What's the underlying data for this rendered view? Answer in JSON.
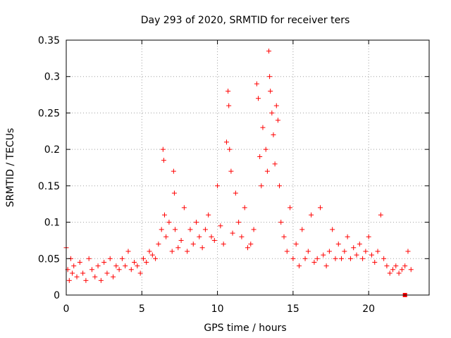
{
  "chart_data": {
    "type": "scatter",
    "title": "Day 293 of 2020, SRMTID for receiver ters",
    "xlabel": "GPS time / hours",
    "ylabel": "SRMTID / TECUs",
    "xlim": [
      0,
      24
    ],
    "ylim": [
      0,
      0.35
    ],
    "xticks": [
      0,
      5,
      10,
      15,
      20
    ],
    "xtick_labels": [
      "0",
      "5",
      "10",
      "15",
      "20"
    ],
    "yticks": [
      0,
      0.05,
      0.1,
      0.15,
      0.2,
      0.25,
      0.3,
      0.35
    ],
    "ytick_labels": [
      "0",
      "0.05",
      "0.1",
      "0.15",
      "0.2",
      "0.25",
      "0.3",
      "0.35"
    ],
    "grid": true,
    "marker": "+",
    "color": "#ff0000",
    "series": [
      {
        "name": "SRMTID",
        "x": [
          0.0,
          0.1,
          0.2,
          0.3,
          0.4,
          0.5,
          0.7,
          0.9,
          1.1,
          1.3,
          1.5,
          1.7,
          1.9,
          2.1,
          2.3,
          2.5,
          2.7,
          2.9,
          3.1,
          3.3,
          3.5,
          3.7,
          3.9,
          4.1,
          4.3,
          4.5,
          4.7,
          4.9,
          5.1,
          5.3,
          5.5,
          5.7,
          5.9,
          6.1,
          6.3,
          6.4,
          6.45,
          6.5,
          6.6,
          6.8,
          7.0,
          7.1,
          7.15,
          7.2,
          7.4,
          7.6,
          7.8,
          8.0,
          8.2,
          8.4,
          8.6,
          8.8,
          9.0,
          9.2,
          9.4,
          9.6,
          9.8,
          10.0,
          10.2,
          10.4,
          10.6,
          10.7,
          10.75,
          10.8,
          10.9,
          11.0,
          11.2,
          11.4,
          11.6,
          11.8,
          12.0,
          12.2,
          12.4,
          12.6,
          12.7,
          12.8,
          12.9,
          13.0,
          13.2,
          13.3,
          13.4,
          13.45,
          13.5,
          13.6,
          13.7,
          13.8,
          13.9,
          14.0,
          14.1,
          14.2,
          14.4,
          14.6,
          14.8,
          15.0,
          15.2,
          15.4,
          15.6,
          15.8,
          16.0,
          16.2,
          16.4,
          16.6,
          16.8,
          17.0,
          17.2,
          17.4,
          17.6,
          17.8,
          18.0,
          18.2,
          18.4,
          18.6,
          18.8,
          19.0,
          19.2,
          19.4,
          19.6,
          19.8,
          20.0,
          20.2,
          20.4,
          20.6,
          20.8,
          21.0,
          21.2,
          21.4,
          21.6,
          21.8,
          22.0,
          22.2,
          22.4,
          22.6,
          22.8
        ],
        "y": [
          0.065,
          0.035,
          0.02,
          0.05,
          0.03,
          0.04,
          0.025,
          0.045,
          0.03,
          0.02,
          0.05,
          0.035,
          0.025,
          0.04,
          0.02,
          0.045,
          0.03,
          0.05,
          0.025,
          0.04,
          0.035,
          0.05,
          0.04,
          0.06,
          0.035,
          0.045,
          0.04,
          0.03,
          0.05,
          0.045,
          0.06,
          0.055,
          0.05,
          0.07,
          0.09,
          0.2,
          0.185,
          0.11,
          0.08,
          0.1,
          0.06,
          0.17,
          0.14,
          0.09,
          0.065,
          0.075,
          0.12,
          0.06,
          0.09,
          0.07,
          0.1,
          0.08,
          0.065,
          0.09,
          0.11,
          0.08,
          0.075,
          0.15,
          0.095,
          0.07,
          0.21,
          0.28,
          0.26,
          0.2,
          0.17,
          0.085,
          0.14,
          0.1,
          0.08,
          0.12,
          0.065,
          0.07,
          0.09,
          0.29,
          0.27,
          0.19,
          0.15,
          0.23,
          0.2,
          0.17,
          0.335,
          0.3,
          0.28,
          0.25,
          0.22,
          0.18,
          0.26,
          0.24,
          0.15,
          0.1,
          0.08,
          0.06,
          0.12,
          0.05,
          0.07,
          0.04,
          0.09,
          0.05,
          0.06,
          0.11,
          0.045,
          0.05,
          0.12,
          0.055,
          0.04,
          0.06,
          0.09,
          0.05,
          0.07,
          0.05,
          0.06,
          0.08,
          0.05,
          0.065,
          0.055,
          0.07,
          0.05,
          0.06,
          0.08,
          0.055,
          0.045,
          0.06,
          0.11,
          0.05,
          0.04,
          0.03,
          0.035,
          0.04,
          0.03,
          0.035,
          0.04,
          0.06,
          0.035
        ]
      }
    ],
    "outlier_marker": {
      "x": 22.4,
      "y": 0.0
    }
  }
}
